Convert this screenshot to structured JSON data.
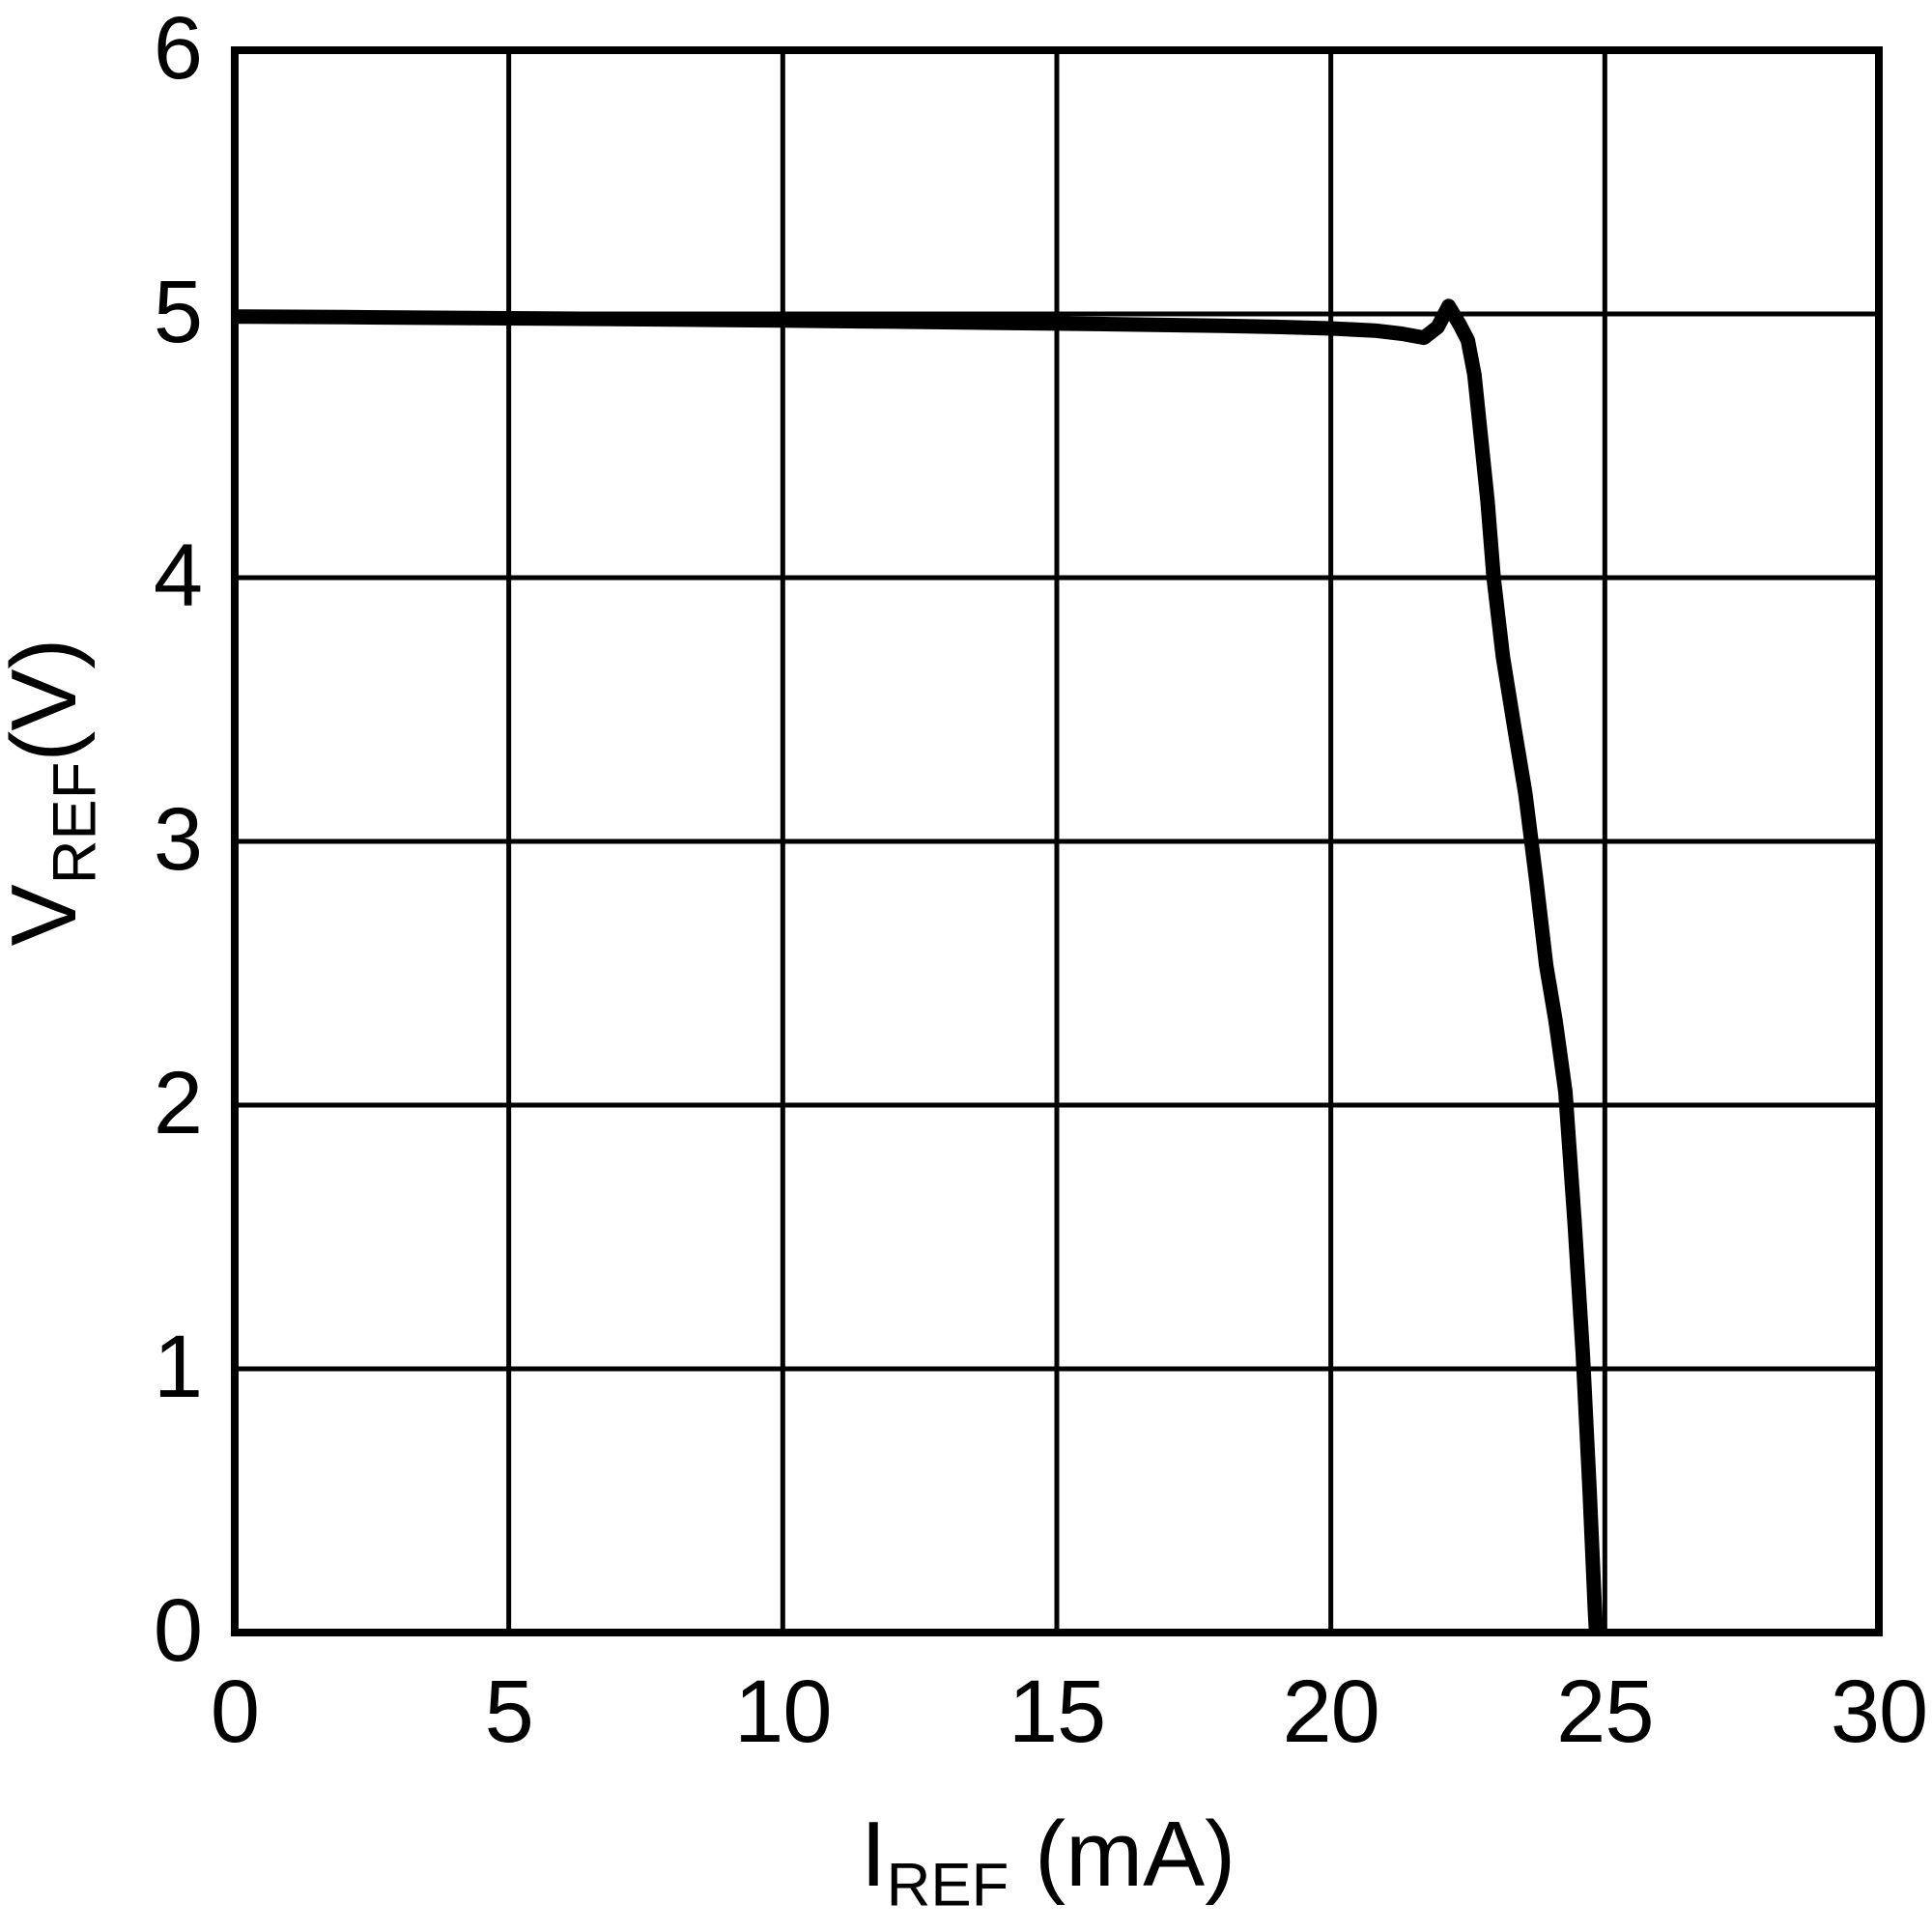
{
  "chart_data": {
    "type": "line",
    "title": "",
    "xlabel_main": "I",
    "xlabel_sub": "REF",
    "xlabel_unit": "(mA)",
    "ylabel_main": "V",
    "ylabel_sub": "REF",
    "ylabel_unit": "(V)",
    "xlim": [
      0,
      30
    ],
    "ylim": [
      0,
      6
    ],
    "x_ticks": [
      0,
      5,
      10,
      15,
      20,
      25,
      30
    ],
    "y_ticks": [
      0,
      1,
      2,
      3,
      4,
      5,
      6
    ],
    "grid": true,
    "legend": "none",
    "line_color": "#000000",
    "series": [
      {
        "name": "VREF vs IREF",
        "points": [
          [
            0,
            4.99
          ],
          [
            2,
            4.988
          ],
          [
            4,
            4.985
          ],
          [
            6,
            4.982
          ],
          [
            8,
            4.979
          ],
          [
            10,
            4.975
          ],
          [
            12,
            4.971
          ],
          [
            14,
            4.966
          ],
          [
            16,
            4.961
          ],
          [
            18,
            4.955
          ],
          [
            19,
            4.951
          ],
          [
            20,
            4.945
          ],
          [
            20.8,
            4.937
          ],
          [
            21.3,
            4.925
          ],
          [
            21.7,
            4.91
          ],
          [
            21.95,
            4.95
          ],
          [
            22.15,
            5.03
          ],
          [
            22.35,
            4.96
          ],
          [
            22.5,
            4.9
          ],
          [
            22.62,
            4.77
          ],
          [
            22.86,
            4.29
          ],
          [
            22.97,
            4.0
          ],
          [
            23.14,
            3.7
          ],
          [
            23.35,
            3.43
          ],
          [
            23.55,
            3.18
          ],
          [
            23.75,
            2.85
          ],
          [
            23.93,
            2.53
          ],
          [
            24.1,
            2.32
          ],
          [
            24.28,
            2.05
          ],
          [
            24.45,
            1.55
          ],
          [
            24.6,
            1.05
          ],
          [
            24.72,
            0.55
          ],
          [
            24.82,
            0.08
          ],
          [
            24.84,
            0
          ]
        ]
      }
    ]
  }
}
